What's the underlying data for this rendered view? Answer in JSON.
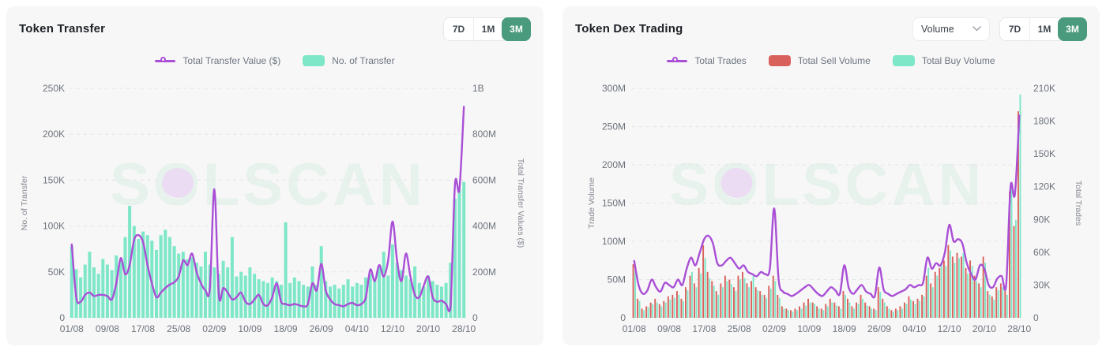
{
  "watermark": "SOLSCAN",
  "colors": {
    "accent_green": "#4a9b7d",
    "line_purple": "#a94fd6",
    "bar_teal": "#7ee7c7",
    "bar_red": "#d9615b",
    "card_bg": "#f7f7f8"
  },
  "panels": [
    {
      "title": "Token Transfer",
      "ranges": [
        "7D",
        "1M",
        "3M"
      ],
      "active_range": "3M",
      "legend": [
        {
          "label": "Total Transfer Value ($)",
          "marker": "line-circle"
        },
        {
          "label": "No. of Transfer",
          "marker": "teal-swatch"
        }
      ]
    },
    {
      "title": "Token Dex Trading",
      "dropdown": {
        "value": "Volume"
      },
      "ranges": [
        "7D",
        "1M",
        "3M"
      ],
      "active_range": "3M",
      "legend": [
        {
          "label": "Total Trades",
          "marker": "line-circle"
        },
        {
          "label": "Total Sell Volume",
          "marker": "red-swatch"
        },
        {
          "label": "Total Buy Volume",
          "marker": "teal-swatch"
        }
      ]
    }
  ],
  "chart_data": [
    {
      "type": "combo",
      "title": "Token Transfer",
      "n_points": 89,
      "x_tick_labels": [
        "01/08",
        "09/08",
        "17/08",
        "25/08",
        "02/09",
        "10/09",
        "18/09",
        "26/09",
        "04/10",
        "12/10",
        "20/10",
        "28/10"
      ],
      "x_tick_indices": [
        0,
        8,
        16,
        24,
        32,
        40,
        48,
        56,
        64,
        72,
        80,
        88
      ],
      "left_axis": {
        "label": "No. of Transfer",
        "unit": "K",
        "max": 250,
        "ticks": [
          "250K",
          "200K",
          "150K",
          "100K",
          "50K",
          "0"
        ]
      },
      "right_axis": {
        "label": "Total Transfer Values ($)",
        "unit": "M",
        "max": 1000,
        "ticks": [
          "1B",
          "800M",
          "600M",
          "400M",
          "200M",
          "0"
        ]
      },
      "series": [
        {
          "name": "No. of Transfer",
          "type": "bar",
          "axis": "left",
          "color": "#7ee7c7",
          "values": [
            78,
            53,
            44,
            58,
            72,
            55,
            48,
            64,
            58,
            52,
            68,
            64,
            88,
            122,
            100,
            86,
            94,
            90,
            84,
            74,
            90,
            96,
            88,
            78,
            70,
            72,
            64,
            66,
            60,
            56,
            72,
            58,
            55,
            48,
            62,
            55,
            88,
            45,
            50,
            46,
            55,
            48,
            42,
            40,
            38,
            44,
            40,
            36,
            104,
            38,
            44,
            40,
            36,
            34,
            56,
            36,
            78,
            40,
            34,
            36,
            32,
            36,
            42,
            34,
            38,
            36,
            44,
            48,
            42,
            56,
            72,
            46,
            80,
            60,
            52,
            46,
            42,
            56,
            38,
            34,
            46,
            40,
            36,
            34,
            38,
            60,
            130,
            140,
            148
          ]
        },
        {
          "name": "Total Transfer Value ($)",
          "type": "line",
          "axis": "right",
          "color": "#a94fd6",
          "values": [
            320,
            90,
            70,
            100,
            110,
            95,
            100,
            100,
            95,
            80,
            150,
            260,
            190,
            230,
            340,
            360,
            330,
            230,
            150,
            90,
            110,
            130,
            145,
            155,
            180,
            250,
            230,
            280,
            200,
            150,
            120,
            130,
            560,
            100,
            130,
            110,
            80,
            90,
            110,
            70,
            60,
            80,
            100,
            60,
            55,
            90,
            150,
            70,
            60,
            55,
            60,
            55,
            50,
            60,
            150,
            120,
            235,
            120,
            80,
            60,
            55,
            50,
            60,
            65,
            55,
            60,
            90,
            210,
            160,
            230,
            180,
            250,
            420,
            250,
            160,
            280,
            180,
            100,
            90,
            140,
            180,
            90,
            70,
            75,
            60,
            45,
            580,
            560,
            920
          ]
        }
      ]
    },
    {
      "type": "combo",
      "title": "Token Dex Trading",
      "n_points": 89,
      "x_tick_labels": [
        "01/08",
        "09/08",
        "17/08",
        "25/08",
        "02/09",
        "10/09",
        "18/09",
        "26/09",
        "04/10",
        "12/10",
        "20/10",
        "28/10"
      ],
      "x_tick_indices": [
        0,
        8,
        16,
        24,
        32,
        40,
        48,
        56,
        64,
        72,
        80,
        88
      ],
      "left_axis": {
        "label": "Trade Volume",
        "unit": "M",
        "max": 300,
        "ticks": [
          "300M",
          "250M",
          "200M",
          "150M",
          "100M",
          "50M",
          "0"
        ]
      },
      "right_axis": {
        "label": "Total Trades",
        "unit": "K",
        "max": 210,
        "ticks": [
          "210K",
          "180K",
          "150K",
          "120K",
          "90K",
          "60K",
          "30K",
          "0"
        ]
      },
      "series": [
        {
          "name": "Total Sell Volume",
          "type": "bar",
          "axis": "left",
          "color": "#d9615b",
          "values": [
            70,
            25,
            12,
            15,
            20,
            25,
            18,
            22,
            28,
            30,
            35,
            25,
            40,
            55,
            45,
            65,
            95,
            60,
            48,
            35,
            45,
            55,
            50,
            40,
            55,
            60,
            45,
            48,
            40,
            35,
            30,
            42,
            55,
            30,
            15,
            12,
            10,
            12,
            15,
            20,
            25,
            20,
            15,
            12,
            18,
            25,
            20,
            15,
            35,
            25,
            15,
            20,
            30,
            20,
            15,
            12,
            40,
            25,
            15,
            10,
            12,
            15,
            20,
            28,
            22,
            25,
            30,
            55,
            45,
            60,
            65,
            75,
            95,
            80,
            85,
            80,
            65,
            75,
            55,
            45,
            80,
            35,
            28,
            40,
            45,
            35,
            165,
            120,
            270
          ]
        },
        {
          "name": "Total Buy Volume",
          "type": "bar",
          "axis": "left",
          "color": "#7ee7c7",
          "values": [
            62,
            22,
            10,
            14,
            18,
            20,
            15,
            20,
            24,
            26,
            30,
            22,
            36,
            60,
            40,
            58,
            78,
            52,
            42,
            30,
            40,
            48,
            44,
            35,
            50,
            52,
            40,
            55,
            36,
            30,
            26,
            38,
            48,
            26,
            12,
            10,
            8,
            10,
            12,
            16,
            20,
            18,
            12,
            10,
            15,
            20,
            16,
            12,
            30,
            20,
            12,
            18,
            25,
            16,
            12,
            10,
            34,
            20,
            12,
            8,
            10,
            12,
            18,
            24,
            18,
            22,
            28,
            65,
            40,
            55,
            72,
            68,
            88,
            72,
            78,
            85,
            58,
            68,
            48,
            40,
            72,
            30,
            24,
            36,
            40,
            30,
            175,
            128,
            292
          ]
        },
        {
          "name": "Total Trades",
          "type": "line",
          "axis": "right",
          "color": "#a94fd6",
          "values": [
            52,
            30,
            22,
            25,
            35,
            28,
            24,
            32,
            30,
            28,
            35,
            30,
            45,
            55,
            48,
            60,
            72,
            75,
            68,
            50,
            48,
            52,
            55,
            50,
            45,
            48,
            42,
            40,
            38,
            42,
            40,
            45,
            100,
            35,
            24,
            22,
            20,
            22,
            25,
            28,
            30,
            26,
            22,
            20,
            24,
            28,
            25,
            22,
            48,
            28,
            22,
            26,
            30,
            24,
            22,
            20,
            46,
            26,
            22,
            20,
            22,
            24,
            26,
            30,
            28,
            30,
            32,
            55,
            45,
            50,
            48,
            60,
            85,
            70,
            72,
            68,
            50,
            40,
            35,
            48,
            45,
            30,
            28,
            36,
            38,
            30,
            120,
            113,
            185
          ]
        }
      ]
    }
  ]
}
